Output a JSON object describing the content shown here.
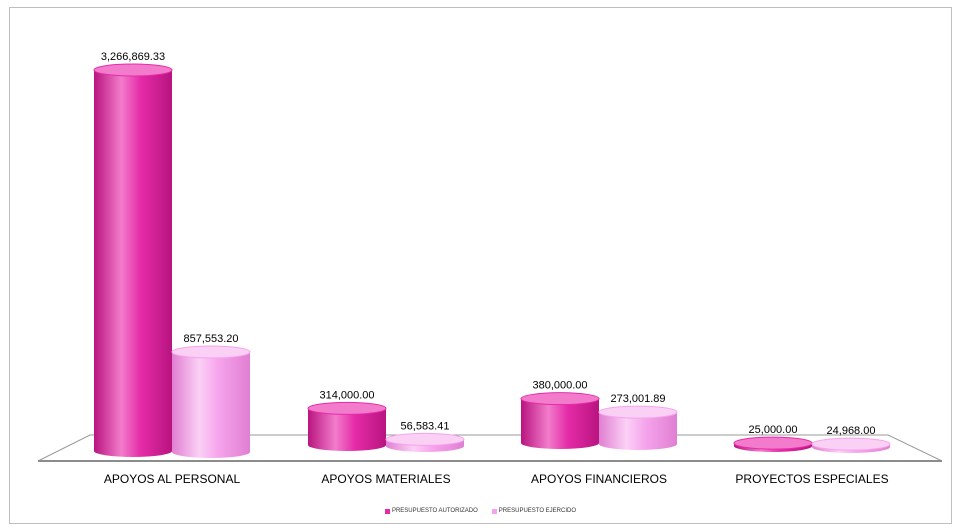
{
  "chart_data": {
    "type": "bar",
    "categories": [
      "APOYOS AL PERSONAL",
      "APOYOS MATERIALES",
      "APOYOS FINANCIEROS",
      "PROYECTOS ESPECIALES"
    ],
    "series": [
      {
        "name": "PRESUPUESTO AUTORIZADO",
        "values": [
          3266869.33,
          314000.0,
          380000.0,
          25000.0
        ],
        "labels": [
          "3,266,869.33",
          "314,000.00",
          "380,000.00",
          "25,000.00"
        ],
        "color": "#e52ba8",
        "color_dark": "#b8147f",
        "color_light": "#f27ccb"
      },
      {
        "name": "PRESUPUESTO EJERCIDO",
        "values": [
          857553.2,
          56583.41,
          273001.89,
          24968.0
        ],
        "labels": [
          "857,553.20",
          "56,583.41",
          "273,001.89",
          "24,968.00"
        ],
        "color": "#f6a3ec",
        "color_dark": "#e07fd2",
        "color_light": "#fbd0f5"
      }
    ],
    "ylim": [
      0,
      3266869.33
    ],
    "grid": false,
    "legend_position": "bottom",
    "style": "3d-cylinder"
  }
}
